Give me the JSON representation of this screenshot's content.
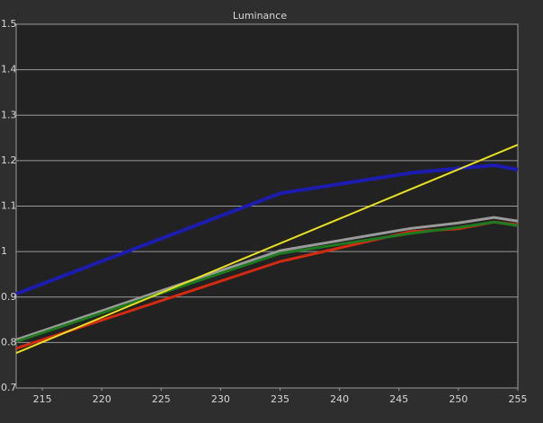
{
  "chart_data": {
    "type": "line",
    "title": "Luminance",
    "xlim": [
      212.8,
      255
    ],
    "xticks": [
      215,
      220,
      225,
      230,
      235,
      240,
      245,
      250,
      255
    ],
    "ylim": [
      0.7,
      1.5
    ],
    "yticks": [
      0.7,
      0.8,
      0.9,
      1,
      1.1,
      1.2,
      1.3,
      1.4,
      1.5
    ],
    "grid": true,
    "series": [
      {
        "color": "#1c1cb0",
        "x": [
          212.8,
          235,
          246,
          250,
          253,
          255
        ],
        "values": [
          0.907,
          1.128,
          1.173,
          1.183,
          1.19,
          1.18
        ]
      },
      {
        "color": "#9a9a9a",
        "x": [
          212.8,
          235,
          246,
          250,
          253,
          255
        ],
        "values": [
          0.806,
          1.002,
          1.051,
          1.063,
          1.075,
          1.067
        ]
      },
      {
        "color": "#d42a10",
        "x": [
          212.8,
          235,
          246,
          250,
          253,
          255
        ],
        "values": [
          0.787,
          0.978,
          1.044,
          1.05,
          1.065,
          1.059
        ]
      },
      {
        "color": "#1f7a1f",
        "x": [
          212.8,
          235,
          246,
          250,
          253,
          255
        ],
        "values": [
          0.802,
          0.996,
          1.04,
          1.053,
          1.065,
          1.057
        ]
      },
      {
        "color": "#e8e020",
        "x": [
          212.8,
          255
        ],
        "values": [
          0.777,
          1.235
        ]
      }
    ]
  }
}
